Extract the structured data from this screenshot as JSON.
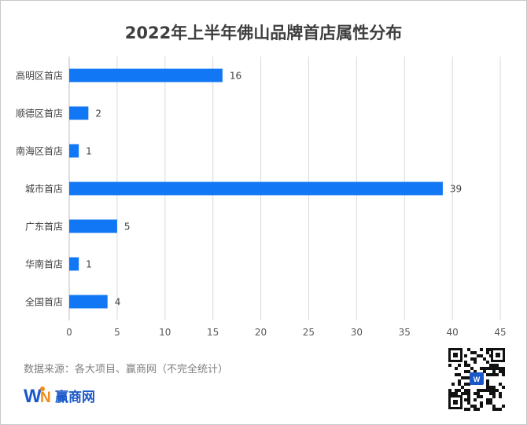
{
  "title": "2022年上半年佛山品牌首店属性分布",
  "source_note": "数据来源：各大项目、赢商网（不完全统计）",
  "brand": {
    "name": "赢商网",
    "logo_letters": "WIN",
    "color": "#1a57c8",
    "accent": "#f08a1c"
  },
  "chart_data": {
    "type": "bar",
    "orientation": "horizontal",
    "categories": [
      "高明区首店",
      "顺德区首店",
      "南海区首店",
      "城市首店",
      "广东首店",
      "华南首店",
      "全国首店"
    ],
    "values": [
      16,
      2,
      1,
      39,
      5,
      1,
      4
    ],
    "xlim": [
      0,
      45
    ],
    "xticks": [
      0,
      5,
      10,
      15,
      20,
      25,
      30,
      35,
      40,
      45
    ],
    "bar_color": "#1177f5",
    "grid": true,
    "data_labels": true,
    "legend": "none"
  }
}
